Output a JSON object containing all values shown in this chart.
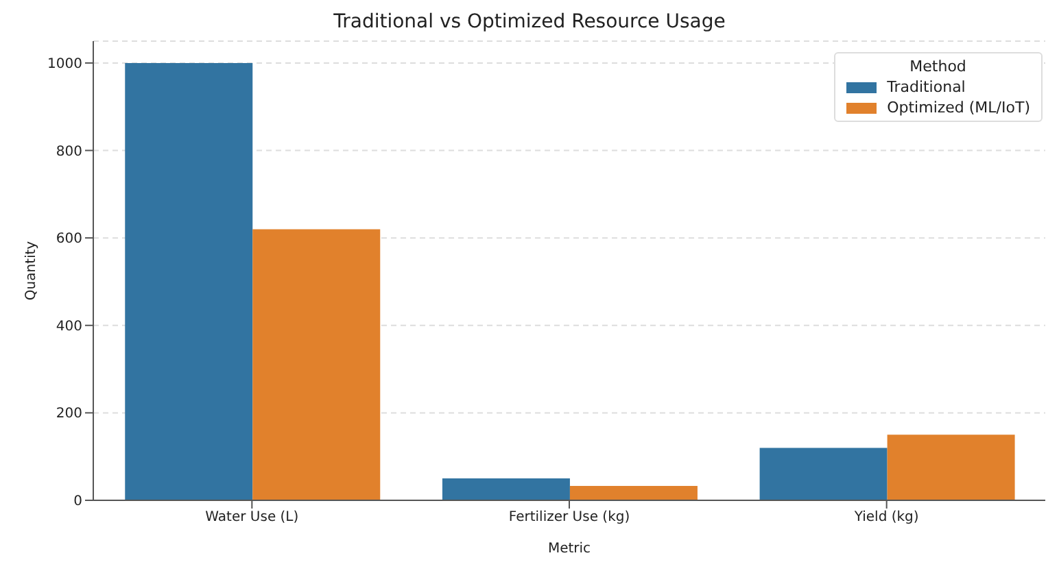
{
  "chart_data": {
    "type": "bar",
    "title": "Traditional vs Optimized Resource Usage",
    "xlabel": "Metric",
    "ylabel": "Quantity",
    "legend_title": "Method",
    "categories": [
      "Water Use (L)",
      "Fertilizer Use (kg)",
      "Yield (kg)"
    ],
    "series": [
      {
        "name": "Traditional",
        "color": "#3274a1",
        "values": [
          1000,
          50,
          120
        ]
      },
      {
        "name": "Optimized (ML/IoT)",
        "color": "#e1812c",
        "values": [
          620,
          33,
          150
        ]
      }
    ],
    "ylim": [
      0,
      1050
    ],
    "yticks": [
      0,
      200,
      400,
      600,
      800,
      1000
    ],
    "grid": "y",
    "legend": "top right"
  }
}
